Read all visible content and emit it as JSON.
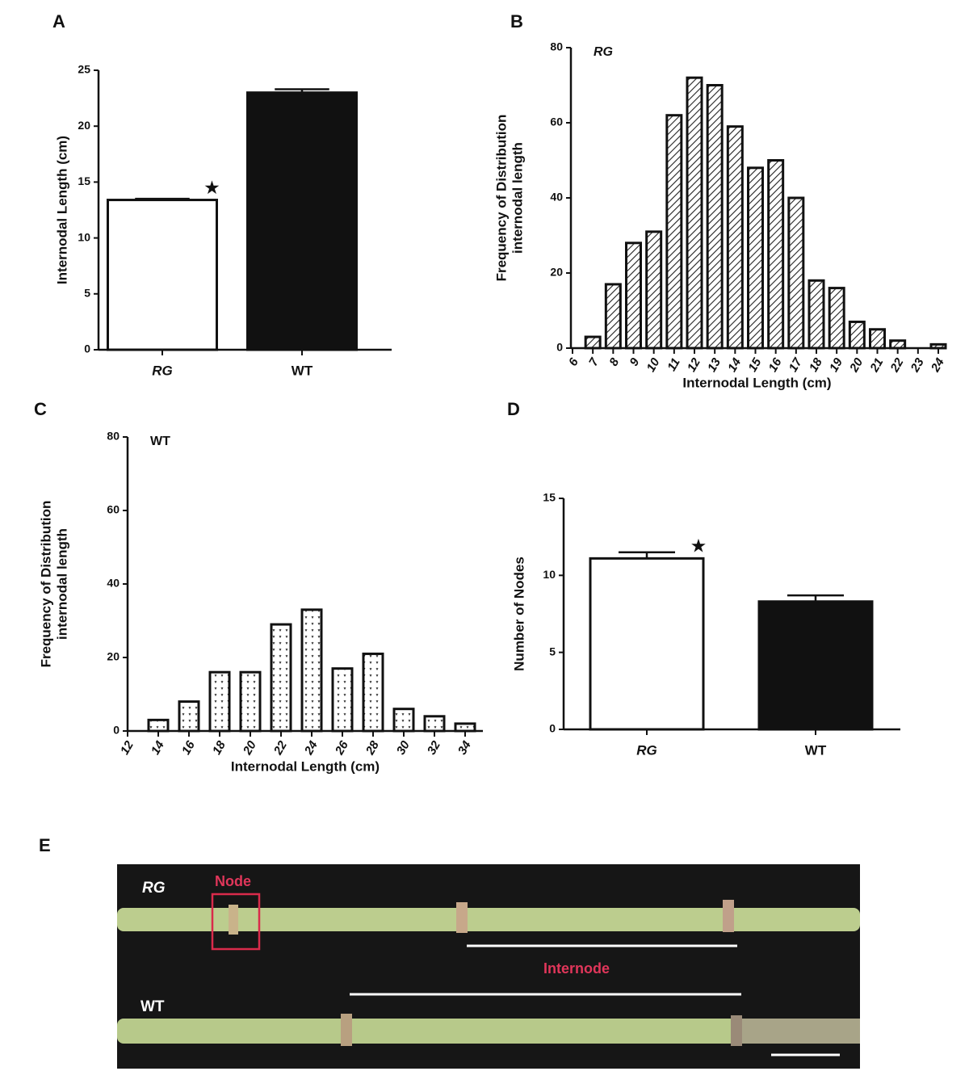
{
  "chart_data": [
    {
      "type": "bar",
      "panel_label": "A",
      "categories": [
        "RG",
        "WT"
      ],
      "values": [
        13.4,
        23
      ],
      "errors": [
        0.1,
        0.3
      ],
      "colors": [
        "#ffffff",
        "#111111"
      ],
      "ylim": [
        0,
        25
      ],
      "yticks": [
        0,
        5,
        10,
        15,
        20,
        25
      ],
      "ylabel": [
        "Internodal Length (cm)"
      ],
      "annotation": "★"
    },
    {
      "type": "bar",
      "panel_label": "B",
      "categories": [
        "6",
        "7",
        "8",
        "9",
        "10",
        "11",
        "12",
        "13",
        "14",
        "15",
        "16",
        "17",
        "18",
        "19",
        "20",
        "21",
        "22",
        "23",
        "24"
      ],
      "values": [
        0,
        3,
        17,
        28,
        31,
        62,
        72,
        70,
        59,
        48,
        50,
        40,
        18,
        16,
        7,
        5,
        2,
        0,
        1
      ],
      "fill_pattern": "hatch",
      "ylim": [
        0,
        80
      ],
      "yticks": [
        0,
        20,
        40,
        60,
        80
      ],
      "ylabel": [
        "Frequency of Distribution",
        "internodal length"
      ],
      "xlabel": "Internodal Length (cm)",
      "annotation": "RG"
    },
    {
      "type": "bar",
      "panel_label": "C",
      "categories": [
        "12",
        "14",
        "16",
        "18",
        "20",
        "22",
        "24",
        "26",
        "28",
        "30",
        "32",
        "34"
      ],
      "values": [
        0,
        3,
        8,
        16,
        16,
        29,
        33,
        17,
        21,
        6,
        4,
        2
      ],
      "fill_pattern": "dots",
      "ylim": [
        0,
        80
      ],
      "yticks": [
        0,
        20,
        40,
        60,
        80
      ],
      "ylabel": [
        "Frequency of Distribution",
        "internodal length"
      ],
      "xlabel": "Internodal Length (cm)",
      "annotation": "WT"
    },
    {
      "type": "bar",
      "panel_label": "D",
      "categories": [
        "RG",
        "WT"
      ],
      "values": [
        11.1,
        8.3
      ],
      "errors": [
        0.4,
        0.4
      ],
      "colors": [
        "#ffffff",
        "#111111"
      ],
      "ylim": [
        0,
        15
      ],
      "yticks": [
        0,
        5,
        10,
        15
      ],
      "ylabel": [
        "Number of Nodes"
      ],
      "annotation": "★"
    }
  ],
  "photo": {
    "panel_label": "E",
    "labels": {
      "rg": "RG",
      "node": "Node",
      "internode": "Internode",
      "wt": "WT"
    }
  }
}
